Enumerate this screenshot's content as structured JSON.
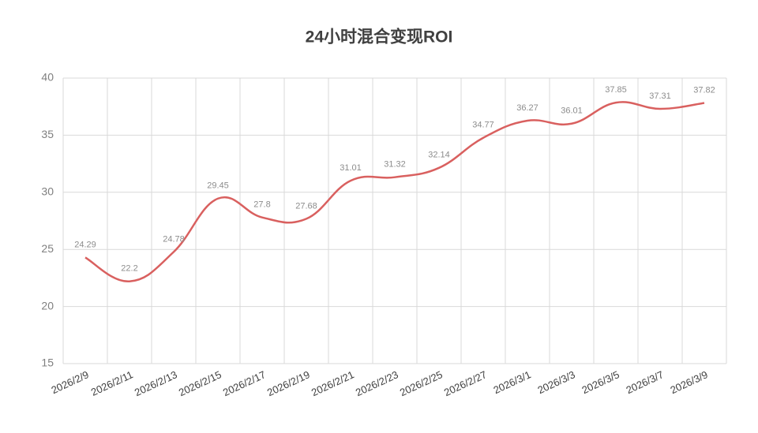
{
  "chart_data": {
    "type": "line",
    "title": "24小时混合变现ROI",
    "categories": [
      "2026/2/9",
      "2026/2/11",
      "2026/2/13",
      "2026/2/15",
      "2026/2/17",
      "2026/2/19",
      "2026/2/21",
      "2026/2/23",
      "2026/2/25",
      "2026/2/27",
      "2026/3/1",
      "2026/3/3",
      "2026/3/5",
      "2026/3/7",
      "2026/3/9"
    ],
    "values": [
      24.29,
      22.2,
      24.78,
      29.45,
      27.8,
      27.68,
      31.01,
      31.32,
      32.14,
      34.77,
      36.27,
      36.01,
      37.85,
      37.31,
      37.82
    ],
    "color": "#d9605f",
    "ylim": [
      15,
      40
    ],
    "yticks": [
      15,
      20,
      25,
      30,
      35,
      40
    ],
    "grid": true
  }
}
